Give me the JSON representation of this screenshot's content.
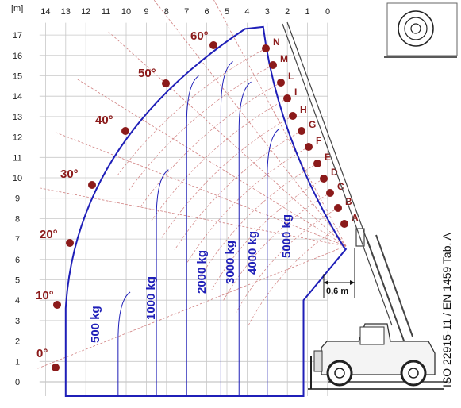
{
  "unit_label": "[m]",
  "x_ticks": [
    "14",
    "13",
    "12",
    "11",
    "10",
    "9",
    "8",
    "7",
    "6",
    "5",
    "4",
    "3",
    "2",
    "1",
    "0"
  ],
  "y_ticks": [
    "17",
    "16",
    "15",
    "14",
    "13",
    "12",
    "11",
    "10",
    "9",
    "8",
    "7",
    "6",
    "5",
    "4",
    "3",
    "2",
    "1",
    "0"
  ],
  "angles": [
    "0°",
    "10°",
    "20°",
    "30°",
    "40°",
    "50°",
    "60°"
  ],
  "extensions": [
    "A",
    "B",
    "C",
    "D",
    "E",
    "F",
    "G",
    "H",
    "I",
    "L",
    "M",
    "N"
  ],
  "loads": [
    "500 kg",
    "1000 kg",
    "2000 kg",
    "3000 kg",
    "4000 kg",
    "5000 kg"
  ],
  "dimension": "0,6 m",
  "standard": "ISO 22915-11  / EN 1459 Tab. A",
  "colors": {
    "envelope": "#1f1fb8",
    "angle": "#8b1a1a",
    "grid": "#c8c8c8",
    "arc": "#d08080"
  },
  "icon": "stabilizer-wheel-icon"
}
